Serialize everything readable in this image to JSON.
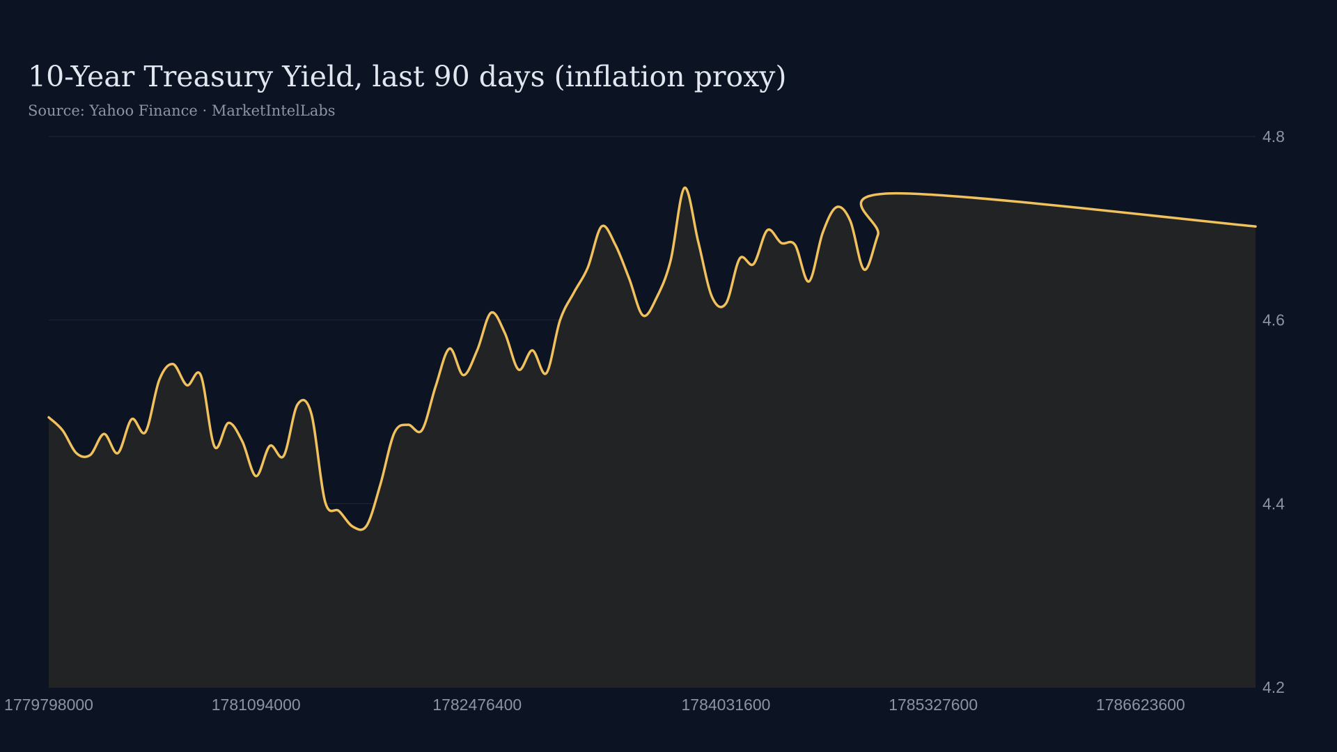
{
  "colors": {
    "background": "#0c1323",
    "line": "#f1c15d",
    "area_fill": "#222325",
    "grid": "#1f2839",
    "text_primary": "#e2e6ef",
    "text_secondary": "#8d95a5"
  },
  "chart_data": {
    "type": "area",
    "title": "10-Year Treasury Yield, last 90 days (inflation proxy)",
    "subtitle": "Source: Yahoo Finance · MarketIntelLabs",
    "xlabel": "",
    "ylabel": "",
    "ylim": [
      4.2,
      4.8
    ],
    "xlim": [
      1779798000,
      1787342400
    ],
    "yticks": [
      "4.2",
      "4.4",
      "4.6",
      "4.8"
    ],
    "yaxis_position": "right",
    "xticks": [
      "1779798000",
      "1781094000",
      "1782476400",
      "1784031600",
      "1785327600",
      "1786623600"
    ],
    "grid": true,
    "legend": "none",
    "series": [
      {
        "x": [
          1779798000,
          1779884400,
          1779970800,
          1780057200,
          1780143600,
          1780230000,
          1780316400,
          1780402800,
          1780489200,
          1780575600,
          1780662000,
          1780748400,
          1780834800,
          1780921200,
          1781007600,
          1781094000,
          1781180400,
          1781266800,
          1781353200,
          1781439600,
          1781526000,
          1781612400,
          1781698800,
          1781785200,
          1781871600,
          1781958000,
          1782044400,
          1782130800,
          1782217200,
          1782303600,
          1782390000,
          1782476400,
          1782562800,
          1782649200,
          1782735600,
          1782822000,
          1782908400,
          1782994800,
          1783081200,
          1783167600,
          1783254000,
          1783340400,
          1783426800,
          1783513200,
          1783599600,
          1783686000,
          1783772400,
          1783858800,
          1783945200,
          1784031600,
          1784118000,
          1784204400,
          1784290800,
          1784377200,
          1784463600,
          1784550000,
          1784636400,
          1784722800,
          1784809200,
          1784895600,
          1784982000,
          1785068400,
          1785154800,
          1785241200,
          1785327600,
          1785414000,
          1785500400,
          1785586800,
          1785673200,
          1785759600,
          1785846000,
          1785932400,
          1786018800,
          1786105200,
          1786191600,
          1786278000,
          1786364400,
          1786450800,
          1786537200,
          1786623600,
          1786710000,
          1786796400,
          1786882800,
          1786969200,
          1787055600,
          1787142000,
          1787228400,
          1787314800,
          1787342400
        ],
        "values": [
          4.494,
          4.48,
          4.455,
          4.453,
          4.476,
          4.455,
          4.492,
          4.478,
          4.535,
          4.552,
          4.529,
          4.54,
          4.462,
          4.488,
          4.468,
          4.43,
          4.463,
          4.452,
          4.508,
          4.498,
          4.402,
          4.392,
          4.375,
          4.376,
          4.421,
          4.477,
          4.486,
          4.48,
          4.528,
          4.569,
          4.54,
          4.567,
          4.608,
          4.586,
          4.546,
          4.567,
          4.542,
          4.6,
          4.63,
          4.657,
          4.702,
          4.682,
          4.645,
          4.605,
          4.625,
          4.665,
          4.744,
          4.685,
          4.625,
          4.618,
          4.667,
          4.661,
          4.698,
          4.684,
          4.682,
          4.642,
          4.695,
          4.723,
          4.708,
          4.655,
          4.693,
          4.738,
          4.702,
          4.65,
          4.65,
          4.65,
          4.65,
          4.65,
          4.65,
          4.65,
          4.65,
          4.65,
          4.65,
          4.65,
          4.65,
          4.65,
          4.65,
          4.65,
          4.65,
          4.65,
          4.65,
          4.65,
          4.65,
          4.65,
          4.65,
          4.65,
          4.65,
          4.65,
          4.65
        ]
      }
    ]
  }
}
